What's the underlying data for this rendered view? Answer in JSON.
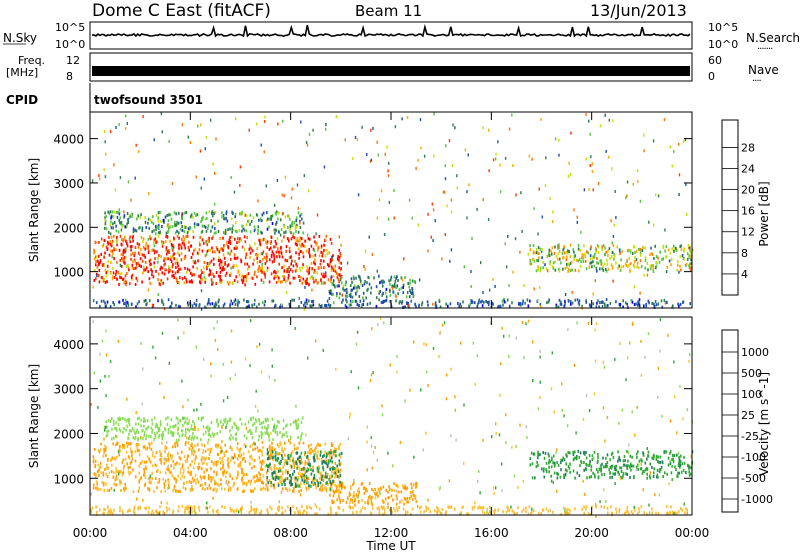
{
  "header": {
    "station_title": "Dome C East (fitACF)",
    "beam": "Beam 11",
    "date": "13/Jun/2013"
  },
  "nsky_panel": {
    "left_label": "N.Sky",
    "left_ticks": [
      "10^5",
      "10^0"
    ],
    "right_ticks": [
      "10^5",
      "10^0"
    ],
    "right_label": "N.Search",
    "right_label_dots": "·······"
  },
  "freq_panel": {
    "left_label_1": "Freq.",
    "left_label_2": "[MHz]",
    "left_ticks": [
      "12",
      "8"
    ],
    "right_ticks": [
      "60",
      "0"
    ],
    "right_label": "Nave",
    "right_label_dots": "····"
  },
  "cpid_panel": {
    "label": "CPID",
    "program": "twofsound 3501"
  },
  "colors": {
    "power_scale": [
      "#0000ff",
      "#1f4fae",
      "#2e7d4f",
      "#55c742",
      "#c8e000",
      "#ffa800",
      "#ff7000",
      "#ff3800",
      "#ff0000"
    ],
    "velocity_scale": [
      "#ff0000",
      "#ff6000",
      "#ffa000",
      "#ffbf30",
      "#bebebe",
      "#88dd55",
      "#2ea832",
      "#1f7f5f",
      "#2050b0",
      "#1a34a0"
    ]
  },
  "chart_data": [
    {
      "type": "heatmap",
      "title": "",
      "xlabel": "",
      "ylabel": "Slant Range [km]",
      "xlim": [
        "00:00",
        "24:00"
      ],
      "ylim": [
        180,
        4600
      ],
      "x_ticks": [
        "00:00",
        "04:00",
        "08:00",
        "12:00",
        "16:00",
        "20:00",
        "00:00"
      ],
      "y_ticks": [
        "1000",
        "2000",
        "3000",
        "4000"
      ],
      "colorbar": {
        "label": "Power [dB]",
        "ticks": [
          "4",
          "8",
          "12",
          "16",
          "20",
          "24",
          "28"
        ],
        "range": [
          0,
          30
        ]
      },
      "regions": [
        {
          "t_start": 0.1,
          "t_end": 10.0,
          "range_center": 1250,
          "range_halfwidth": 550,
          "value": 26
        },
        {
          "t_start": 0.5,
          "t_end": 8.5,
          "range_center": 2100,
          "range_halfwidth": 250,
          "value": 10
        },
        {
          "t_start": 9.5,
          "t_end": 13.0,
          "range_center": 650,
          "range_halfwidth": 250,
          "value": 8
        },
        {
          "t_start": 0.0,
          "t_end": 24.0,
          "range_center": 280,
          "range_halfwidth": 90,
          "value": 6
        },
        {
          "t_start": 17.5,
          "t_end": 24.0,
          "range_center": 1300,
          "range_halfwidth": 300,
          "value": 14
        }
      ]
    },
    {
      "type": "heatmap",
      "title": "",
      "xlabel": "Time UT",
      "ylabel": "Slant Range [km]",
      "xlim": [
        "00:00",
        "24:00"
      ],
      "ylim": [
        180,
        4600
      ],
      "x_ticks": [
        "00:00",
        "04:00",
        "08:00",
        "12:00",
        "16:00",
        "20:00",
        "00:00"
      ],
      "y_ticks": [
        "1000",
        "2000",
        "3000",
        "4000"
      ],
      "colorbar": {
        "label": "Velocity [m s^-1]",
        "ticks": [
          "1000",
          "500",
          "100",
          "25",
          "-25",
          "-100",
          "-500",
          "-1000"
        ]
      },
      "regions": [
        {
          "t_start": 0.1,
          "t_end": 10.0,
          "range_center": 1250,
          "range_halfwidth": 550,
          "value": -100
        },
        {
          "t_start": 7.0,
          "t_end": 10.0,
          "range_center": 1200,
          "range_halfwidth": 400,
          "value": 300
        },
        {
          "t_start": 0.5,
          "t_end": 8.5,
          "range_center": 2100,
          "range_halfwidth": 250,
          "value": 50
        },
        {
          "t_start": 9.5,
          "t_end": 13.0,
          "range_center": 650,
          "range_halfwidth": 250,
          "value": -150
        },
        {
          "t_start": 0.0,
          "t_end": 24.0,
          "range_center": 280,
          "range_halfwidth": 90,
          "value": -60
        },
        {
          "t_start": 17.5,
          "t_end": 24.0,
          "range_center": 1300,
          "range_halfwidth": 300,
          "value": 200
        }
      ]
    }
  ]
}
